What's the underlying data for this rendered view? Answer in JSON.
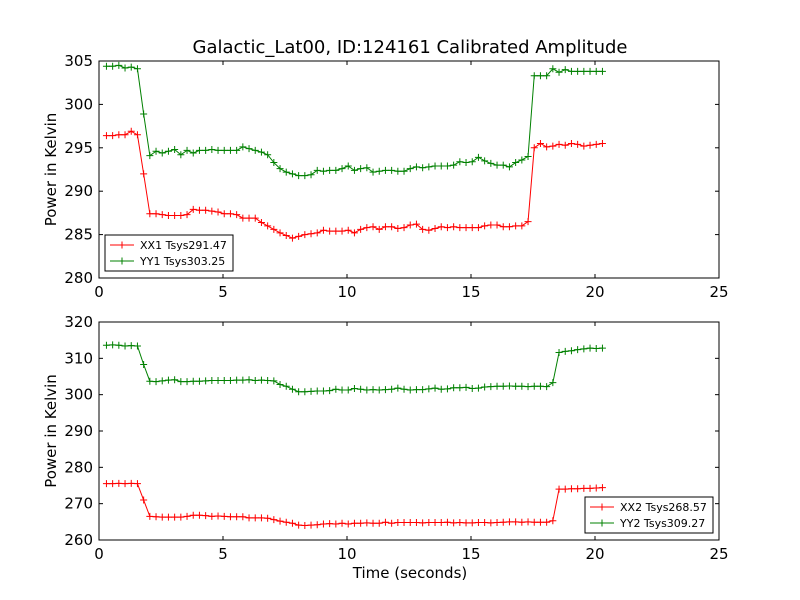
{
  "chart_data": [
    {
      "type": "line",
      "title": "Galactic_Lat00, ID:124161 Calibrated Amplitude",
      "xlabel": "",
      "ylabel": "Power in Kelvin",
      "xlim": [
        0,
        25
      ],
      "ylim": [
        280,
        305
      ],
      "xticks": [
        "0",
        "5",
        "10",
        "15",
        "20",
        "25"
      ],
      "yticks": [
        "280",
        "285",
        "290",
        "295",
        "300",
        "305"
      ],
      "grid": false,
      "legend_position": "lower-left",
      "x": [
        0.3,
        0.55,
        0.8,
        1.05,
        1.3,
        1.55,
        1.8,
        2.05,
        2.3,
        2.55,
        2.8,
        3.05,
        3.3,
        3.55,
        3.8,
        4.05,
        4.3,
        4.55,
        4.8,
        5.05,
        5.3,
        5.55,
        5.8,
        6.05,
        6.3,
        6.55,
        6.8,
        7.05,
        7.3,
        7.55,
        7.8,
        8.05,
        8.3,
        8.55,
        8.8,
        9.05,
        9.3,
        9.55,
        9.8,
        10.05,
        10.3,
        10.55,
        10.8,
        11.05,
        11.3,
        11.55,
        11.8,
        12.05,
        12.3,
        12.55,
        12.8,
        13.05,
        13.3,
        13.55,
        13.8,
        14.05,
        14.3,
        14.55,
        14.8,
        15.05,
        15.3,
        15.55,
        15.8,
        16.05,
        16.3,
        16.55,
        16.8,
        17.05,
        17.3,
        17.55,
        17.8,
        18.05,
        18.3,
        18.55,
        18.8,
        19.05,
        19.3,
        19.55,
        19.8,
        20.05,
        20.3
      ],
      "series": [
        {
          "name": "XX1 Tsys291.47",
          "color": "#ff0000",
          "values": [
            296.4,
            296.4,
            296.5,
            296.5,
            296.9,
            296.5,
            292.0,
            287.4,
            287.4,
            287.3,
            287.2,
            287.2,
            287.2,
            287.3,
            287.9,
            287.8,
            287.8,
            287.7,
            287.6,
            287.4,
            287.4,
            287.3,
            286.9,
            286.9,
            286.9,
            286.4,
            286.0,
            285.6,
            285.2,
            284.9,
            284.6,
            284.8,
            285.0,
            285.1,
            285.2,
            285.5,
            285.4,
            285.4,
            285.4,
            285.5,
            285.2,
            285.6,
            285.8,
            285.9,
            285.6,
            285.9,
            285.9,
            285.7,
            285.8,
            286.1,
            286.2,
            285.6,
            285.5,
            285.7,
            285.9,
            285.8,
            285.9,
            285.8,
            285.8,
            285.8,
            285.8,
            286.0,
            286.1,
            286.1,
            285.9,
            285.9,
            286.0,
            286.0,
            286.5,
            295.0,
            295.5,
            295.1,
            295.2,
            295.4,
            295.3,
            295.5,
            295.4,
            295.2,
            295.3,
            295.4,
            295.5
          ]
        },
        {
          "name": "YY1 Tsys303.25",
          "color": "#008000",
          "values": [
            304.4,
            304.4,
            304.5,
            304.2,
            304.3,
            304.1,
            298.9,
            294.1,
            294.6,
            294.4,
            294.6,
            294.8,
            294.2,
            294.7,
            294.4,
            294.7,
            294.7,
            294.8,
            294.7,
            294.7,
            294.7,
            294.7,
            295.1,
            294.9,
            294.7,
            294.5,
            294.2,
            293.3,
            292.6,
            292.2,
            292.0,
            291.8,
            291.8,
            291.9,
            292.4,
            292.3,
            292.4,
            292.4,
            292.6,
            292.9,
            292.4,
            292.6,
            292.7,
            292.2,
            292.3,
            292.4,
            292.4,
            292.3,
            292.3,
            292.6,
            292.8,
            292.7,
            292.8,
            292.9,
            292.9,
            292.9,
            293.0,
            293.4,
            293.3,
            293.4,
            293.9,
            293.5,
            293.2,
            293.0,
            293.0,
            292.8,
            293.3,
            293.6,
            294.0,
            303.3,
            303.3,
            303.3,
            304.1,
            303.7,
            304.0,
            303.8,
            303.8,
            303.8,
            303.8,
            303.8,
            303.8
          ]
        }
      ]
    },
    {
      "type": "line",
      "title": "",
      "xlabel": "Time (seconds)",
      "ylabel": "Power in Kelvin",
      "xlim": [
        0,
        25
      ],
      "ylim": [
        260,
        320
      ],
      "xticks": [
        "0",
        "5",
        "10",
        "15",
        "20",
        "25"
      ],
      "yticks": [
        "260",
        "270",
        "280",
        "290",
        "300",
        "310",
        "320"
      ],
      "grid": false,
      "legend_position": "lower-right",
      "x": [
        0.3,
        0.55,
        0.8,
        1.05,
        1.3,
        1.55,
        1.8,
        2.05,
        2.3,
        2.55,
        2.8,
        3.05,
        3.3,
        3.55,
        3.8,
        4.05,
        4.3,
        4.55,
        4.8,
        5.05,
        5.3,
        5.55,
        5.8,
        6.05,
        6.3,
        6.55,
        6.8,
        7.05,
        7.3,
        7.55,
        7.8,
        8.05,
        8.3,
        8.55,
        8.8,
        9.05,
        9.3,
        9.55,
        9.8,
        10.05,
        10.3,
        10.55,
        10.8,
        11.05,
        11.3,
        11.55,
        11.8,
        12.05,
        12.3,
        12.55,
        12.8,
        13.05,
        13.3,
        13.55,
        13.8,
        14.05,
        14.3,
        14.55,
        14.8,
        15.05,
        15.3,
        15.55,
        15.8,
        16.05,
        16.3,
        16.55,
        16.8,
        17.05,
        17.3,
        17.55,
        17.8,
        18.05,
        18.3,
        18.55,
        18.8,
        19.05,
        19.3,
        19.55,
        19.8,
        20.05,
        20.3
      ],
      "series": [
        {
          "name": "XX2 Tsys268.57",
          "color": "#ff0000",
          "values": [
            275.5,
            275.5,
            275.6,
            275.5,
            275.6,
            275.5,
            271.0,
            266.5,
            266.4,
            266.3,
            266.3,
            266.3,
            266.3,
            266.5,
            266.8,
            266.8,
            266.7,
            266.5,
            266.6,
            266.5,
            266.4,
            266.4,
            266.4,
            266.1,
            266.1,
            266.1,
            266.0,
            265.6,
            265.2,
            264.9,
            264.6,
            264.1,
            264.0,
            264.1,
            264.2,
            264.4,
            264.5,
            264.4,
            264.6,
            264.4,
            264.6,
            264.6,
            264.7,
            264.6,
            264.6,
            264.9,
            264.6,
            264.8,
            264.8,
            264.8,
            264.8,
            264.7,
            264.8,
            264.8,
            264.8,
            264.9,
            264.7,
            264.8,
            264.7,
            264.7,
            264.8,
            264.8,
            264.7,
            264.8,
            264.9,
            265.0,
            265.0,
            264.9,
            265.0,
            264.9,
            264.9,
            264.9,
            265.3,
            274.0,
            274.0,
            274.1,
            274.1,
            274.2,
            274.2,
            274.3,
            274.4
          ]
        },
        {
          "name": "YY2 Tsys309.27",
          "color": "#008000",
          "values": [
            313.6,
            313.7,
            313.6,
            313.4,
            313.5,
            313.4,
            308.3,
            303.7,
            303.6,
            303.8,
            304.0,
            304.1,
            303.6,
            303.6,
            303.7,
            303.7,
            303.8,
            303.9,
            303.9,
            303.9,
            303.9,
            304.0,
            304.0,
            304.1,
            303.9,
            304.0,
            303.9,
            303.8,
            302.8,
            302.3,
            301.5,
            300.8,
            300.8,
            300.9,
            301.0,
            301.0,
            301.1,
            301.5,
            301.3,
            301.3,
            301.7,
            301.5,
            301.3,
            301.4,
            301.3,
            301.4,
            301.5,
            301.8,
            301.5,
            301.3,
            301.4,
            301.4,
            301.6,
            301.8,
            301.5,
            301.6,
            301.9,
            301.9,
            302.0,
            301.7,
            301.8,
            302.1,
            302.2,
            302.3,
            302.3,
            302.4,
            302.3,
            302.3,
            302.2,
            302.3,
            302.3,
            302.2,
            303.3,
            311.6,
            311.9,
            312.1,
            312.4,
            312.6,
            312.8,
            312.7,
            312.8
          ]
        }
      ]
    }
  ]
}
